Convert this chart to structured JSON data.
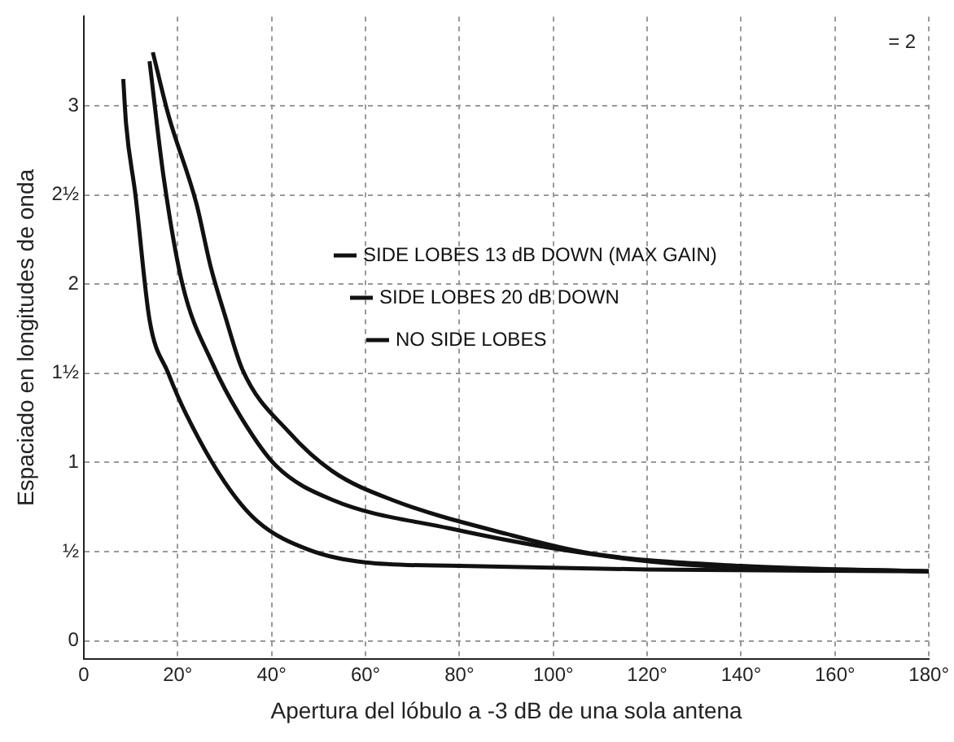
{
  "chart_data": {
    "type": "line",
    "xlabel": "Apertura del lóbulo a -3 dB de una sola antena",
    "ylabel": "Espaciado en longitudes de onda",
    "xlim": [
      0,
      180
    ],
    "xticks": [
      0,
      {
        "value": 20,
        "label": "20°"
      },
      {
        "value": 40,
        "label": "40°"
      },
      {
        "value": 60,
        "label": "60°"
      },
      {
        "value": 80,
        "label": "80°"
      },
      {
        "value": 100,
        "label": "100°"
      },
      {
        "value": 120,
        "label": "120°"
      },
      {
        "value": 140,
        "label": "140°"
      },
      {
        "value": 160,
        "label": "160°"
      },
      {
        "value": 180,
        "label": "180°"
      }
    ],
    "ylim": [
      -0.1,
      3.5
    ],
    "yticks": [
      0,
      {
        "value": 0.5,
        "label": "½"
      },
      1,
      {
        "value": 1.5,
        "label": "1½"
      },
      2,
      {
        "value": 2.5,
        "label": "2½"
      },
      3
    ],
    "grid": true,
    "legend": "top",
    "marker": "none",
    "line_style": "solid",
    "annotations": [
      "= 2"
    ],
    "series": [
      {
        "name": "SIDE LOBES 13 dB DOWN (MAX GAIN)",
        "color": "#111111",
        "x": [
          14.7,
          18,
          24,
          27,
          30,
          33.8,
          43.7,
          53,
          65.7,
          90,
          108,
          140,
          180
        ],
        "values": [
          3.3,
          2.95,
          2.45,
          2.1,
          1.83,
          1.52,
          1.17,
          0.95,
          0.79,
          0.6,
          0.49,
          0.42,
          0.39
        ]
      },
      {
        "name": "SIDE LOBES 20 dB DOWN",
        "color": "#111111",
        "x": [
          14,
          17,
          21,
          27.5,
          33.8,
          41,
          53,
          78,
          102,
          127,
          180
        ],
        "values": [
          3.25,
          2.6,
          2.0,
          1.55,
          1.24,
          0.98,
          0.79,
          0.63,
          0.51,
          0.43,
          0.39
        ]
      },
      {
        "name": "NO SIDE LOBES",
        "color": "#111111",
        "x": [
          8.4,
          9,
          11,
          14,
          18,
          22,
          30,
          37,
          48,
          60,
          80,
          120,
          180
        ],
        "values": [
          3.15,
          2.9,
          2.5,
          1.8,
          1.5,
          1.26,
          0.89,
          0.67,
          0.51,
          0.44,
          0.42,
          0.4,
          0.39
        ]
      }
    ]
  }
}
